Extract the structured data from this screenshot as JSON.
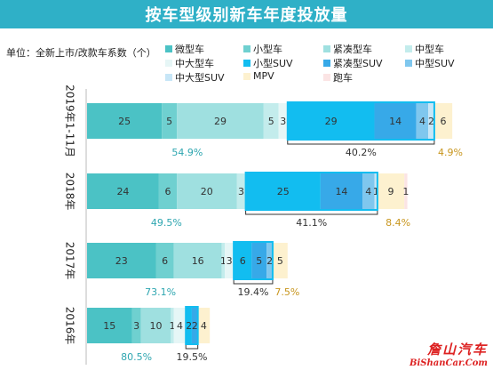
{
  "title": "按车型级别新车年度投放量",
  "unit_label": "单位：全新上市/改款车系数（个）",
  "legend": [
    {
      "name": "微型车",
      "color": "#4bc2c5"
    },
    {
      "name": "小型车",
      "color": "#6fd0d0"
    },
    {
      "name": "紧凑型车",
      "color": "#9fe0e0"
    },
    {
      "name": "中型车",
      "color": "#c3ecec"
    },
    {
      "name": "中大型车",
      "color": "#e6f6f6"
    },
    {
      "name": "小型SUV",
      "color": "#12bdf0"
    },
    {
      "name": "紧凑型SUV",
      "color": "#37a9e8"
    },
    {
      "name": "中型SUV",
      "color": "#7fc7ee"
    },
    {
      "name": "中大型SUV",
      "color": "#c7e6f7"
    },
    {
      "name": "MPV",
      "color": "#fdf1cf"
    },
    {
      "name": "跑车",
      "color": "#fbe4e4"
    }
  ],
  "chart_data": {
    "type": "bar",
    "orientation": "horizontal",
    "stacked": true,
    "categories": [
      "2019年1-11月",
      "2018年",
      "2017年",
      "2016年"
    ],
    "series": [
      {
        "name": "微型车",
        "values": [
          25,
          24,
          23,
          15
        ]
      },
      {
        "name": "小型车",
        "values": [
          5,
          6,
          6,
          3
        ]
      },
      {
        "name": "紧凑型车",
        "values": [
          29,
          20,
          16,
          10
        ]
      },
      {
        "name": "中型车",
        "values": [
          5,
          3,
          1,
          1
        ]
      },
      {
        "name": "中大型车",
        "values": [
          3,
          0,
          3,
          4
        ]
      },
      {
        "name": "小型SUV",
        "values": [
          29,
          25,
          6,
          2
        ]
      },
      {
        "name": "紧凑型SUV",
        "values": [
          14,
          14,
          5,
          2
        ]
      },
      {
        "name": "中型SUV",
        "values": [
          4,
          4,
          2,
          0
        ]
      },
      {
        "name": "中大型SUV",
        "values": [
          2,
          1,
          0,
          0
        ]
      },
      {
        "name": "MPV",
        "values": [
          6,
          9,
          5,
          4
        ]
      },
      {
        "name": "跑车",
        "values": [
          0,
          1,
          0,
          0
        ]
      }
    ],
    "group_shares": [
      {
        "car": "54.9%",
        "suv": "40.2%",
        "mpv": "4.9%"
      },
      {
        "car": "49.5%",
        "suv": "41.1%",
        "mpv": "8.4%"
      },
      {
        "car": "73.1%",
        "suv": "19.4%",
        "mpv": "7.5%"
      },
      {
        "car": "80.5%",
        "suv": "19.5%",
        "mpv": ""
      }
    ]
  },
  "watermark": {
    "cn": "詹山汽车",
    "en": "BiShanCar.Com"
  }
}
